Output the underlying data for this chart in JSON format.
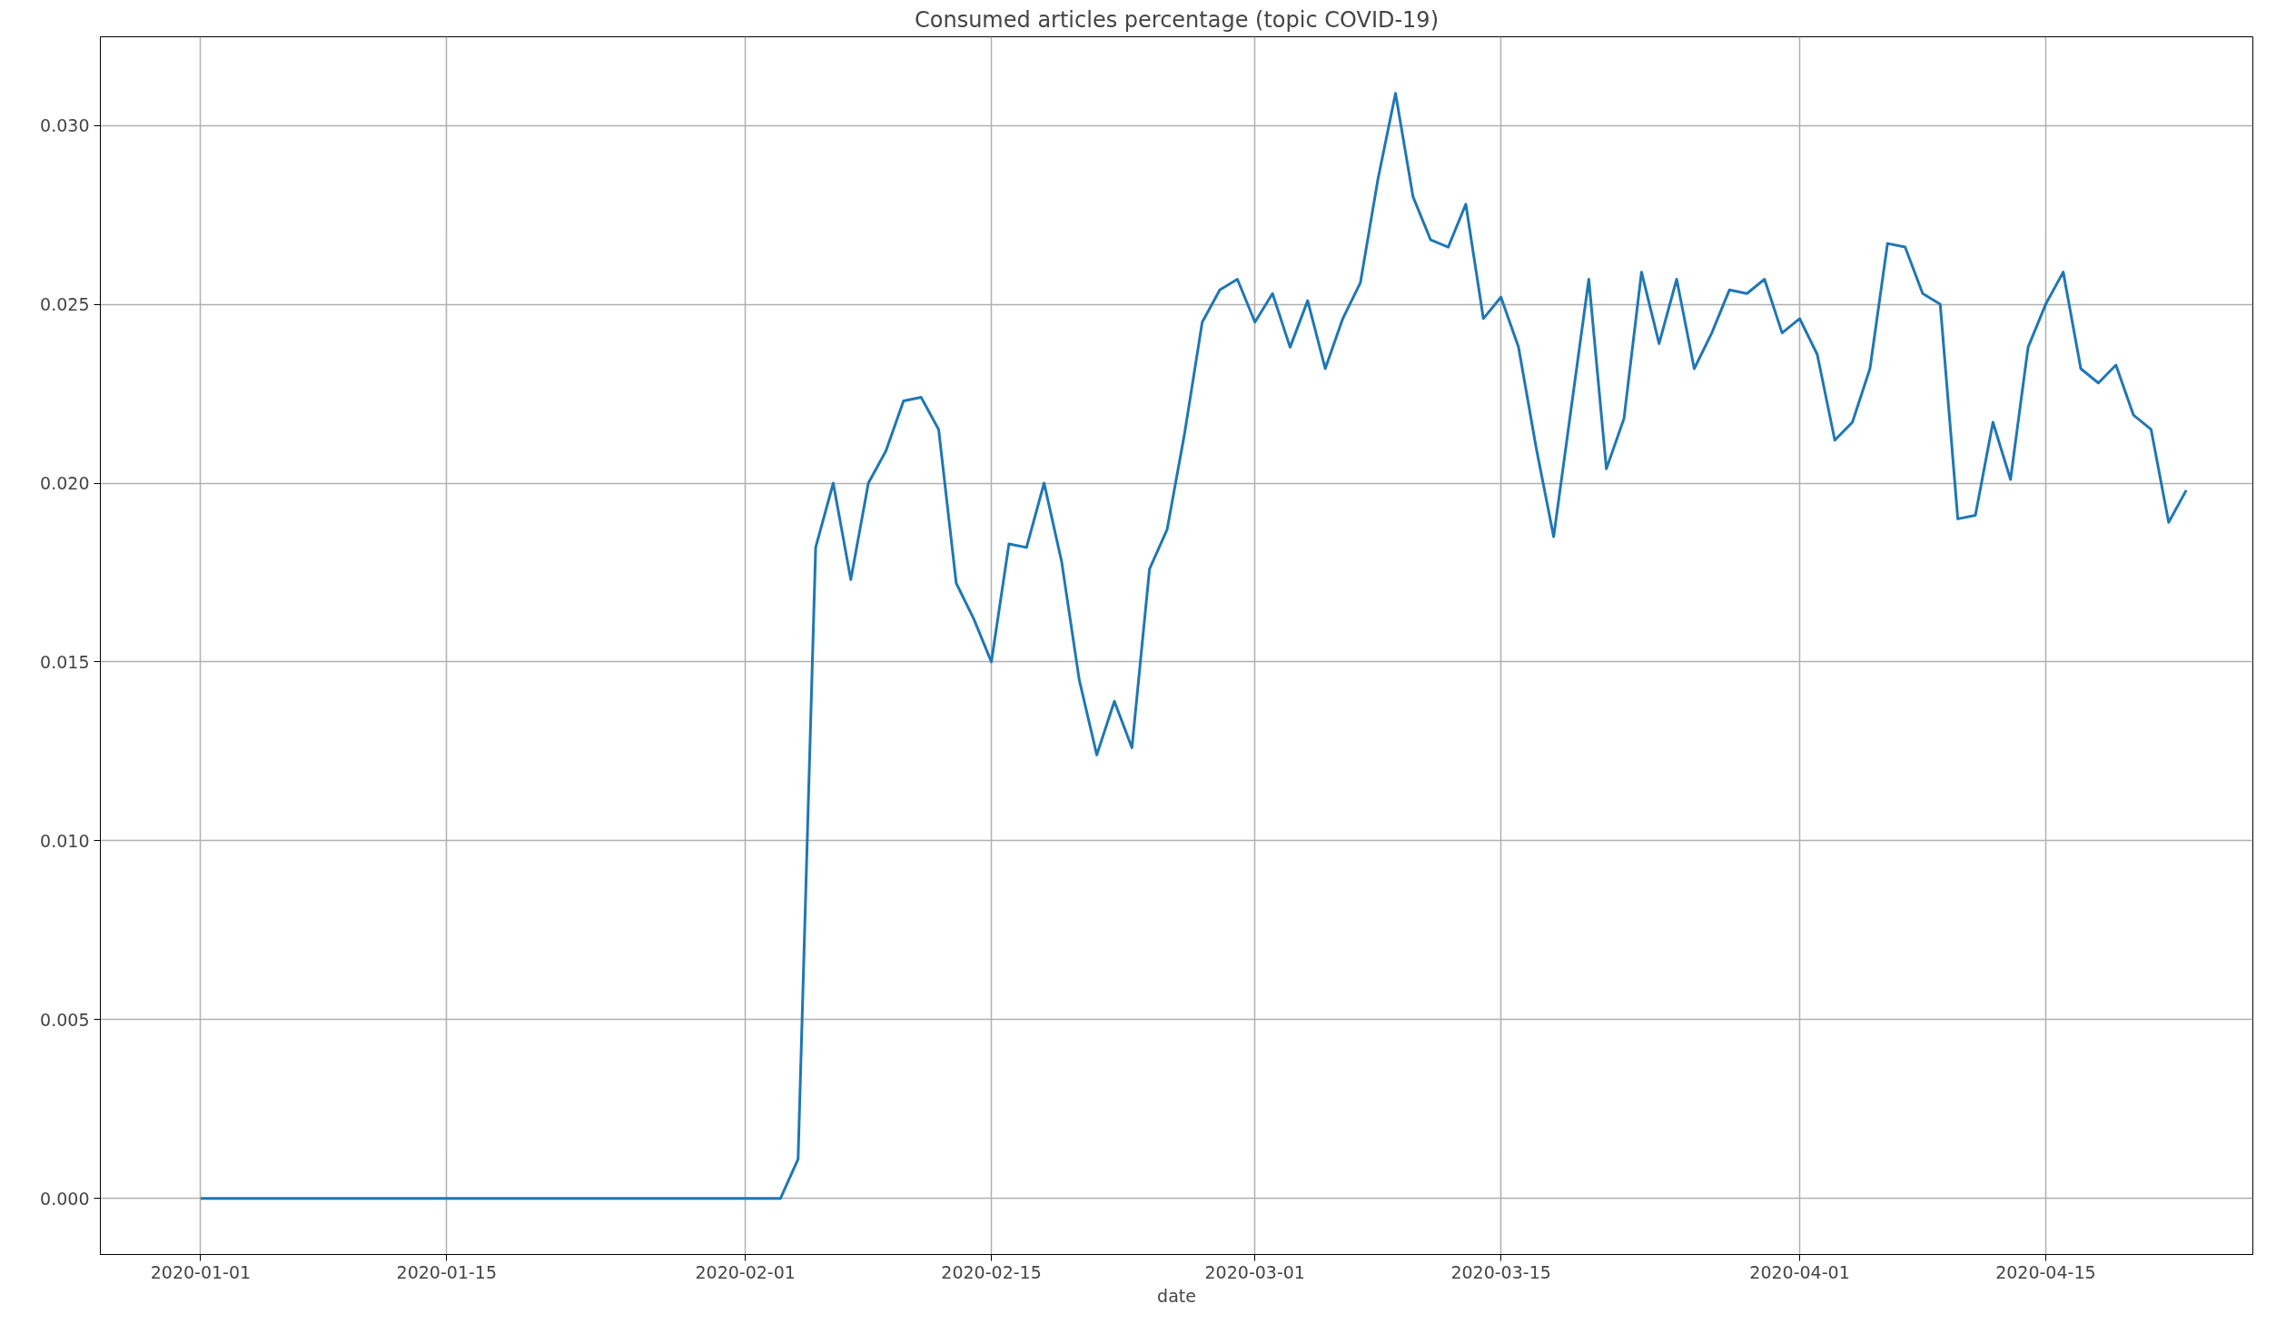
{
  "chart_data": {
    "type": "line",
    "title": "Consumed articles percentage (topic COVID-19)",
    "xlabel": "date",
    "x": [
      "2020-01-01",
      "2020-02-03",
      "2020-02-04",
      "2020-02-05",
      "2020-02-06",
      "2020-02-07",
      "2020-02-08",
      "2020-02-09",
      "2020-02-10",
      "2020-02-11",
      "2020-02-12",
      "2020-02-13",
      "2020-02-14",
      "2020-02-15",
      "2020-02-16",
      "2020-02-17",
      "2020-02-18",
      "2020-02-19",
      "2020-02-20",
      "2020-02-21",
      "2020-02-22",
      "2020-02-23",
      "2020-02-24",
      "2020-02-25",
      "2020-02-26",
      "2020-02-27",
      "2020-02-28",
      "2020-02-29",
      "2020-03-01",
      "2020-03-02",
      "2020-03-03",
      "2020-03-04",
      "2020-03-05",
      "2020-03-06",
      "2020-03-07",
      "2020-03-08",
      "2020-03-09",
      "2020-03-10",
      "2020-03-11",
      "2020-03-12",
      "2020-03-13",
      "2020-03-14",
      "2020-03-15",
      "2020-03-16",
      "2020-03-17",
      "2020-03-18",
      "2020-03-19",
      "2020-03-20",
      "2020-03-21",
      "2020-03-22",
      "2020-03-23",
      "2020-03-24",
      "2020-03-25",
      "2020-03-26",
      "2020-03-27",
      "2020-03-28",
      "2020-03-29",
      "2020-03-30",
      "2020-03-31",
      "2020-04-01",
      "2020-04-02",
      "2020-04-03",
      "2020-04-04",
      "2020-04-05",
      "2020-04-06",
      "2020-04-07",
      "2020-04-08",
      "2020-04-09",
      "2020-04-10",
      "2020-04-11",
      "2020-04-12",
      "2020-04-13",
      "2020-04-14",
      "2020-04-15",
      "2020-04-16",
      "2020-04-17",
      "2020-04-18",
      "2020-04-19",
      "2020-04-20",
      "2020-04-21",
      "2020-04-22",
      "2020-04-23"
    ],
    "series": [
      {
        "color": "#1f77b4",
        "values": [
          0,
          0,
          0.0011,
          0.0182,
          0.02,
          0.0173,
          0.02,
          0.0209,
          0.0223,
          0.0224,
          0.0215,
          0.0172,
          0.0162,
          0.015,
          0.0183,
          0.0182,
          0.02,
          0.0178,
          0.0145,
          0.0124,
          0.0139,
          0.0126,
          0.0176,
          0.0187,
          0.0214,
          0.0245,
          0.0254,
          0.0257,
          0.0245,
          0.0253,
          0.0238,
          0.0251,
          0.0232,
          0.0246,
          0.0256,
          0.0285,
          0.0309,
          0.028,
          0.0268,
          0.0266,
          0.0278,
          0.0246,
          0.0252,
          0.0238,
          0.021,
          0.0185,
          0.0221,
          0.0257,
          0.0204,
          0.0218,
          0.0259,
          0.0239,
          0.0257,
          0.0232,
          0.0242,
          0.0254,
          0.0253,
          0.0257,
          0.0242,
          0.0246,
          0.0236,
          0.0212,
          0.0217,
          0.0232,
          0.0267,
          0.0266,
          0.0253,
          0.025,
          0.019,
          0.0191,
          0.0217,
          0.0201,
          0.0238,
          0.025,
          0.0259,
          0.0232,
          0.0228,
          0.0233,
          0.0219,
          0.0215,
          0.0189,
          0.0198
        ]
      }
    ],
    "xlim": [
      "2019-12-26T07:00",
      "2020-04-26T19:00"
    ],
    "xticks": [
      {
        "value": "2020-01-01",
        "label": "2020-01-01"
      },
      {
        "value": "2020-01-15",
        "label": "2020-01-15"
      },
      {
        "value": "2020-02-01",
        "label": "2020-02-01"
      },
      {
        "value": "2020-02-15",
        "label": "2020-02-15"
      },
      {
        "value": "2020-03-01",
        "label": "2020-03-01"
      },
      {
        "value": "2020-03-15",
        "label": "2020-03-15"
      },
      {
        "value": "2020-04-01",
        "label": "2020-04-01"
      },
      {
        "value": "2020-04-15",
        "label": "2020-04-15"
      }
    ],
    "ylim": [
      -0.00157,
      0.03248
    ],
    "yticks": [
      {
        "value": 0,
        "label": "0.000"
      },
      {
        "value": 0.005,
        "label": "0.005"
      },
      {
        "value": 0.01,
        "label": "0.010"
      },
      {
        "value": 0.015,
        "label": "0.015"
      },
      {
        "value": 0.02,
        "label": "0.020"
      },
      {
        "value": 0.025,
        "label": "0.025"
      },
      {
        "value": 0.03,
        "label": "0.030"
      }
    ],
    "grid": true,
    "marker": "none",
    "line_style": "solid"
  }
}
